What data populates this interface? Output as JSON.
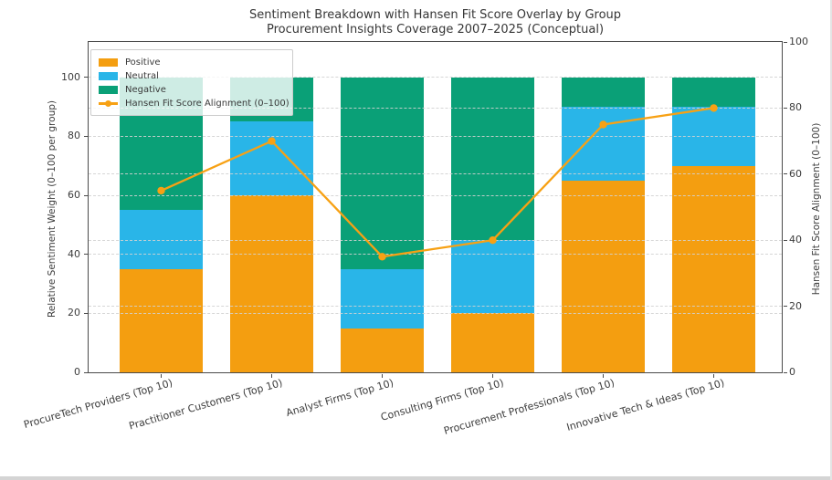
{
  "title": {
    "line1": "Sentiment Breakdown with Hansen Fit Score Overlay by Group",
    "line2": "Procurement Insights Coverage 2007–2025 (Conceptual)"
  },
  "chart_data": {
    "type": "bar",
    "subtype": "stacked-bars-with-line-overlay",
    "title": "Sentiment Breakdown with Hansen Fit Score Overlay by Group",
    "subtitle": "Procurement Insights Coverage 2007–2025 (Conceptual)",
    "categories": [
      "ProcureTech Providers (Top 10)",
      "Practitioner Customers (Top 10)",
      "Analyst Firms (Top 10)",
      "Consulting Firms (Top 10)",
      "Procurement Professionals (Top 10)",
      "Innovative Tech & Ideas (Top 10)"
    ],
    "series": [
      {
        "name": "Positive",
        "color": "#F49E10",
        "values": [
          35,
          60,
          15,
          20,
          65,
          70
        ]
      },
      {
        "name": "Neutral",
        "color": "#29B5E8",
        "values": [
          20,
          25,
          20,
          25,
          25,
          20
        ]
      },
      {
        "name": "Negative",
        "color": "#0AA077",
        "values": [
          45,
          15,
          65,
          55,
          10,
          10
        ]
      }
    ],
    "line_series": {
      "name": "Hansen Fit Score Alignment (0–100)",
      "color": "#F7A114",
      "axis": "right",
      "values": [
        55,
        70,
        35,
        40,
        75,
        80
      ]
    },
    "left_axis": {
      "label": "Relative Sentiment Weight (0–100 per group)",
      "ticks": [
        0,
        20,
        40,
        60,
        80,
        100
      ],
      "ylim": [
        0,
        112
      ]
    },
    "right_axis": {
      "label": "Hansen Fit Score Alignment (0–100)",
      "ticks": [
        0,
        20,
        40,
        60,
        80,
        100
      ],
      "ylim": [
        0,
        100
      ]
    },
    "grid": true,
    "gridline_style": "dashed, both left-scale and right-scale ticks",
    "legend_position": "upper left"
  }
}
